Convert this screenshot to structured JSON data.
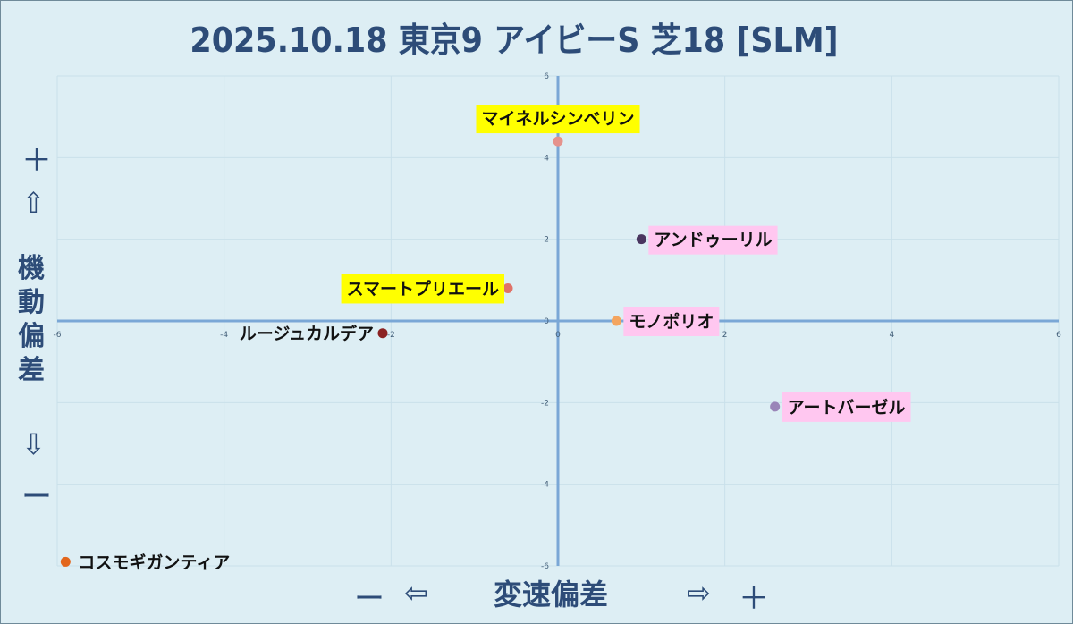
{
  "title": "2025.10.18 東京9 アイビーS 芝18 [SLM]",
  "y_axis": {
    "plus": "＋",
    "up_arrow": "⇧",
    "label": "機動偏差",
    "down_arrow": "⇩",
    "minus": "ー"
  },
  "x_axis": {
    "minus": "ー",
    "left_arrow": "⇦",
    "label": "変速偏差",
    "right_arrow": "⇨",
    "plus": "＋"
  },
  "chart_data": {
    "type": "scatter",
    "title": "2025.10.18 東京9 アイビーS 芝18 [SLM]",
    "xlabel": "変速偏差",
    "ylabel": "機動偏差",
    "xlim": [
      -6,
      6
    ],
    "ylim": [
      -6,
      6
    ],
    "x_ticks": [
      -6,
      -4,
      -2,
      0,
      2,
      4,
      6
    ],
    "y_ticks": [
      -6,
      -4,
      -2,
      0,
      2,
      4,
      6
    ],
    "grid": true,
    "points": [
      {
        "name": "マイネルシンベリン",
        "x": 0.0,
        "y": 4.4,
        "color": "#e5928c",
        "label_bg": "#ffff00",
        "label_side": "above"
      },
      {
        "name": "アンドゥーリル",
        "x": 1.0,
        "y": 2.0,
        "color": "#4a3660",
        "label_bg": "#ffc7f0",
        "label_side": "right"
      },
      {
        "name": "スマートプリエール",
        "x": -0.6,
        "y": 0.8,
        "color": "#e07268",
        "label_bg": "#ffff00",
        "label_side": "left"
      },
      {
        "name": "モノポリオ",
        "x": 0.7,
        "y": 0.0,
        "color": "#f4a55f",
        "label_bg": "#ffc7f0",
        "label_side": "right"
      },
      {
        "name": "ルージュカルデア",
        "x": -2.1,
        "y": -0.3,
        "color": "#8b2222",
        "label_bg": "",
        "label_side": "left"
      },
      {
        "name": "アートバーゼル",
        "x": 2.6,
        "y": -2.1,
        "color": "#9a85b8",
        "label_bg": "#ffc7f0",
        "label_side": "right"
      },
      {
        "name": "コスモギガンティア",
        "x": -5.9,
        "y": -5.9,
        "color": "#e2661c",
        "label_bg": "",
        "label_side": "right"
      }
    ]
  }
}
